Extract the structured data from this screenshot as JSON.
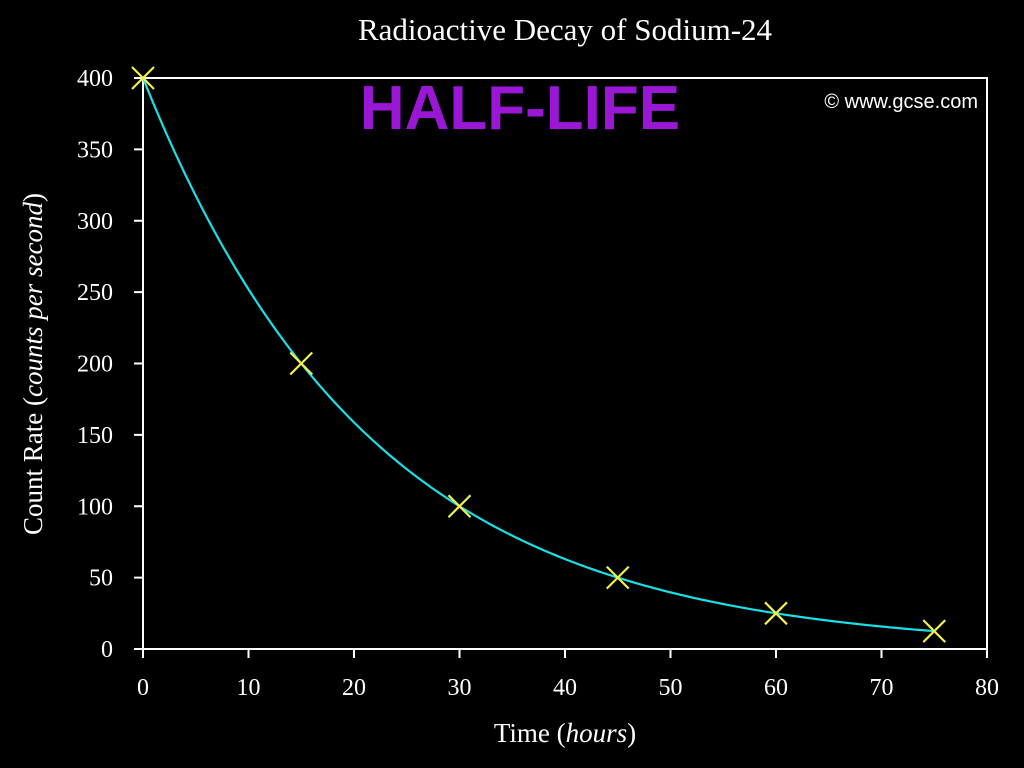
{
  "chart_data": {
    "type": "scatter",
    "title": "Radioactive Decay of Sodium-24",
    "subtitle": "HALF-LIFE",
    "copyright": "© www.gcse.com",
    "xlabel_main": "Time (",
    "xlabel_italic": "hours",
    "xlabel_end": ")",
    "ylabel_main": "Count Rate (",
    "ylabel_italic": "counts per second",
    "ylabel_end": ")",
    "xlim": [
      0,
      80
    ],
    "ylim": [
      0,
      400
    ],
    "xticks": [
      0,
      10,
      20,
      30,
      40,
      50,
      60,
      70,
      80
    ],
    "yticks": [
      0,
      50,
      100,
      150,
      200,
      250,
      300,
      350,
      400
    ],
    "grid": false,
    "series": [
      {
        "x": [
          0,
          15,
          30,
          45,
          60,
          75
        ],
        "y": [
          400,
          200,
          100,
          50,
          25,
          12.5
        ]
      }
    ],
    "curve": {
      "initial": 400,
      "half_life": 15
    },
    "colors": {
      "background": "#000000",
      "axes": "#ffffff",
      "text": "#ffffff",
      "curve": "#19e0e6",
      "markers": "#f2f24a",
      "subtitle": "#9b17d6"
    }
  }
}
